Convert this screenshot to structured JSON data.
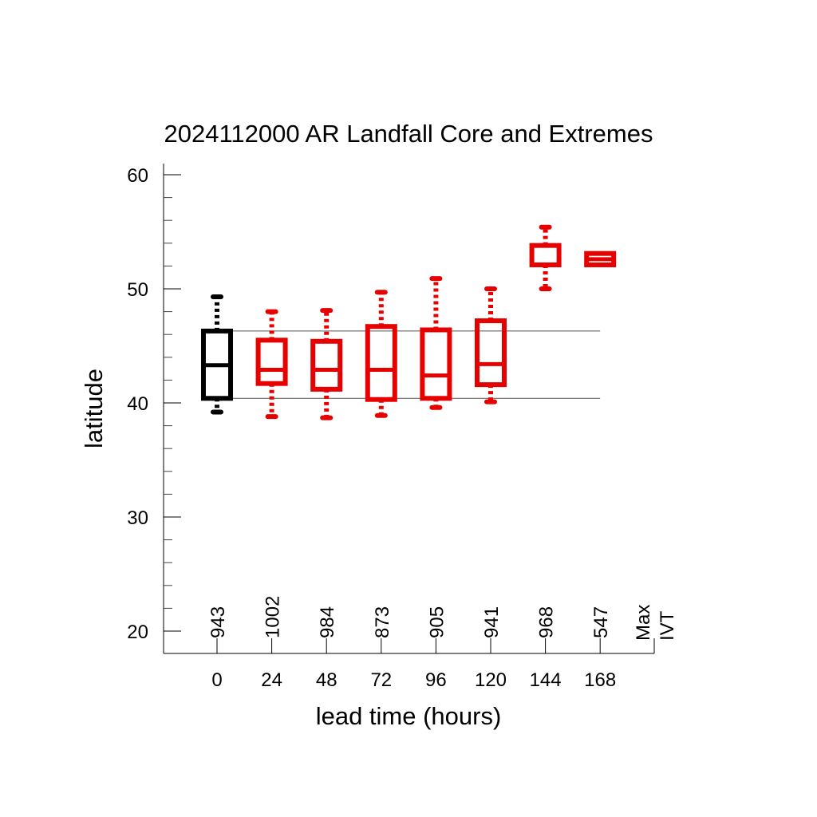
{
  "chart_data": {
    "type": "box",
    "title": "2024112000 AR Landfall Core and Extremes",
    "xlabel": "lead time (hours)",
    "ylabel": "latitude",
    "ylim": [
      18,
      61
    ],
    "yticks": [
      20,
      30,
      40,
      50,
      60
    ],
    "categories": [
      "0",
      "24",
      "48",
      "72",
      "96",
      "120",
      "144",
      "168"
    ],
    "counts": [
      "943",
      "1002",
      "984",
      "873",
      "905",
      "941",
      "968",
      "547"
    ],
    "extra_label": [
      "Max",
      "IVT"
    ],
    "reference_lines": [
      46.3,
      40.4
    ],
    "boxes": [
      {
        "lead": "0",
        "color": "#000000",
        "whisker_low": 39.2,
        "q1": 40.4,
        "median": 43.3,
        "q3": 46.3,
        "whisker_high": 49.3
      },
      {
        "lead": "24",
        "color": "#e60000",
        "whisker_low": 38.8,
        "q1": 41.7,
        "median": 42.9,
        "q3": 45.5,
        "whisker_high": 48.0
      },
      {
        "lead": "48",
        "color": "#e60000",
        "whisker_low": 38.7,
        "q1": 41.2,
        "median": 42.9,
        "q3": 45.4,
        "whisker_high": 48.1
      },
      {
        "lead": "72",
        "color": "#e60000",
        "whisker_low": 38.9,
        "q1": 40.3,
        "median": 42.9,
        "q3": 46.7,
        "whisker_high": 49.7
      },
      {
        "lead": "96",
        "color": "#e60000",
        "whisker_low": 39.6,
        "q1": 40.4,
        "median": 42.4,
        "q3": 46.4,
        "whisker_high": 50.9
      },
      {
        "lead": "120",
        "color": "#e60000",
        "whisker_low": 40.1,
        "q1": 41.6,
        "median": 43.4,
        "q3": 47.2,
        "whisker_high": 50.0
      },
      {
        "lead": "144",
        "color": "#e60000",
        "whisker_low": 50.0,
        "q1": 52.1,
        "median": 52.1,
        "q3": 53.8,
        "whisker_high": 55.4
      },
      {
        "lead": "168",
        "color": "#e60000",
        "whisker_low": 52.1,
        "q1": 52.1,
        "median": 52.6,
        "q3": 53.1,
        "whisker_high": 53.1
      }
    ]
  }
}
